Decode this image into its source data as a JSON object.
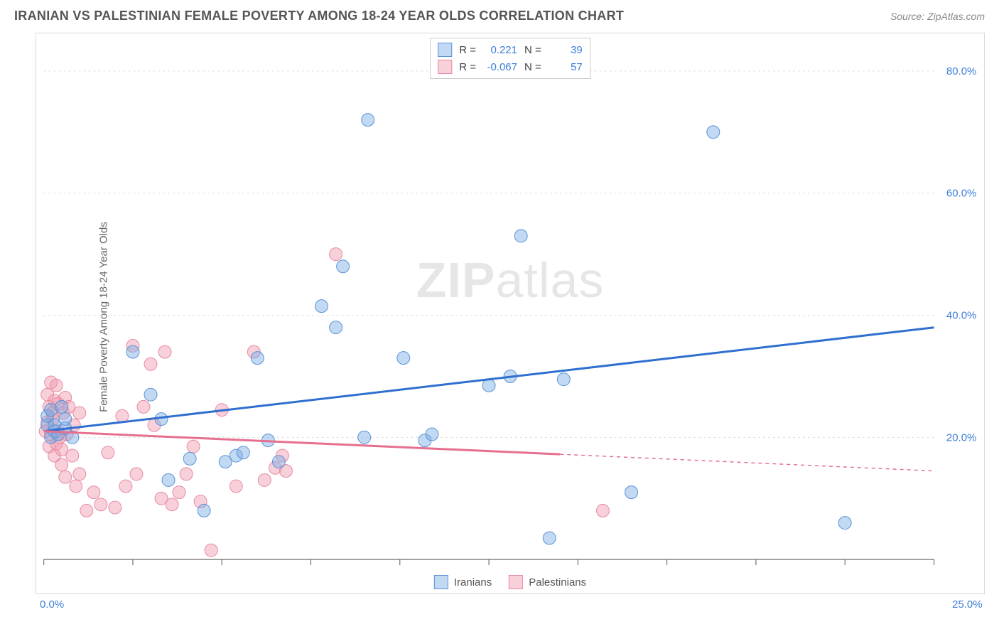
{
  "header": {
    "title": "IRANIAN VS PALESTINIAN FEMALE POVERTY AMONG 18-24 YEAR OLDS CORRELATION CHART",
    "source_prefix": "Source: ",
    "source_name": "ZipAtlas.com"
  },
  "watermark": {
    "zip": "ZIP",
    "atlas": "atlas"
  },
  "chart": {
    "type": "scatter-with-regression",
    "background_color": "#ffffff",
    "grid_color": "#dddddd",
    "grid_dash": "3,4",
    "plot_border_color": "#d9d9d9",
    "xlim": [
      0,
      25
    ],
    "ylim": [
      0,
      85
    ],
    "x_ticks": [
      0,
      2.5,
      5,
      7.5,
      10,
      12.5,
      15,
      17.5,
      20,
      22.5,
      25
    ],
    "x_tick_labels_shown": {
      "0": "0.0%",
      "25": "25.0%"
    },
    "y_gridlines": [
      20,
      40,
      60,
      80
    ],
    "y_tick_labels": {
      "20": "20.0%",
      "40": "40.0%",
      "60": "60.0%",
      "80": "80.0%"
    },
    "ylabel": "Female Poverty Among 18-24 Year Olds",
    "axis_label_color": "#3b7dd8",
    "axis_label_fontsize": 15,
    "series": {
      "iranians": {
        "label": "Iranians",
        "marker_fill": "rgba(120,170,230,0.45)",
        "marker_stroke": "#5a93d6",
        "marker_radius": 9,
        "line_color": "#2e6fd0",
        "line_width": 3,
        "stats": {
          "R": "0.221",
          "N": "39"
        },
        "regression": {
          "x1": 0,
          "y1": 21,
          "x2": 25,
          "y2": 38,
          "solid_until_x": 25
        },
        "points": [
          [
            0.1,
            22
          ],
          [
            0.1,
            23.5
          ],
          [
            0.2,
            20
          ],
          [
            0.2,
            24.5
          ],
          [
            0.3,
            22
          ],
          [
            0.3,
            21
          ],
          [
            0.4,
            20.5
          ],
          [
            0.5,
            25
          ],
          [
            0.6,
            21.5
          ],
          [
            0.6,
            23
          ],
          [
            0.8,
            20
          ],
          [
            2.5,
            34
          ],
          [
            3.0,
            27
          ],
          [
            3.3,
            23
          ],
          [
            3.5,
            13
          ],
          [
            4.1,
            16.5
          ],
          [
            4.5,
            8
          ],
          [
            5.1,
            16
          ],
          [
            5.4,
            17
          ],
          [
            5.6,
            17.5
          ],
          [
            6.0,
            33
          ],
          [
            6.3,
            19.5
          ],
          [
            6.6,
            16
          ],
          [
            7.8,
            41.5
          ],
          [
            8.2,
            38
          ],
          [
            8.4,
            48
          ],
          [
            9.0,
            20
          ],
          [
            9.1,
            72
          ],
          [
            10.1,
            33
          ],
          [
            10.7,
            19.5
          ],
          [
            10.9,
            20.5
          ],
          [
            12.5,
            28.5
          ],
          [
            13.1,
            30
          ],
          [
            13.4,
            53
          ],
          [
            14.2,
            3.5
          ],
          [
            14.6,
            29.5
          ],
          [
            16.5,
            11
          ],
          [
            18.8,
            70
          ],
          [
            22.5,
            6
          ]
        ]
      },
      "palestinians": {
        "label": "Palestinians",
        "marker_fill": "rgba(240,150,170,0.45)",
        "marker_stroke": "#e78aa2",
        "marker_radius": 9,
        "line_color": "#e66f8f",
        "line_width": 3,
        "stats": {
          "R": "-0.067",
          "N": "57"
        },
        "regression": {
          "x1": 0,
          "y1": 21,
          "x2": 25,
          "y2": 14.5,
          "solid_until_x": 14.5
        },
        "points": [
          [
            0.05,
            21
          ],
          [
            0.1,
            27
          ],
          [
            0.1,
            22.5
          ],
          [
            0.15,
            25
          ],
          [
            0.15,
            18.5
          ],
          [
            0.2,
            29
          ],
          [
            0.2,
            20.5
          ],
          [
            0.25,
            23
          ],
          [
            0.25,
            24
          ],
          [
            0.3,
            17
          ],
          [
            0.3,
            26
          ],
          [
            0.35,
            28.5
          ],
          [
            0.35,
            19
          ],
          [
            0.4,
            21
          ],
          [
            0.4,
            25.5
          ],
          [
            0.45,
            20
          ],
          [
            0.5,
            18
          ],
          [
            0.5,
            15.5
          ],
          [
            0.55,
            24
          ],
          [
            0.6,
            13.5
          ],
          [
            0.6,
            26.5
          ],
          [
            0.65,
            20.5
          ],
          [
            0.7,
            25
          ],
          [
            0.8,
            17
          ],
          [
            0.85,
            22
          ],
          [
            0.9,
            12
          ],
          [
            1.0,
            24
          ],
          [
            1.0,
            14
          ],
          [
            1.2,
            8
          ],
          [
            1.4,
            11
          ],
          [
            1.6,
            9
          ],
          [
            1.8,
            17.5
          ],
          [
            2.0,
            8.5
          ],
          [
            2.2,
            23.5
          ],
          [
            2.3,
            12
          ],
          [
            2.5,
            35
          ],
          [
            2.6,
            14
          ],
          [
            2.8,
            25
          ],
          [
            3.0,
            32
          ],
          [
            3.1,
            22
          ],
          [
            3.3,
            10
          ],
          [
            3.4,
            34
          ],
          [
            3.6,
            9
          ],
          [
            3.8,
            11
          ],
          [
            4.0,
            14
          ],
          [
            4.2,
            18.5
          ],
          [
            4.4,
            9.5
          ],
          [
            4.7,
            1.5
          ],
          [
            5.0,
            24.5
          ],
          [
            5.4,
            12
          ],
          [
            5.9,
            34
          ],
          [
            6.2,
            13
          ],
          [
            6.5,
            15
          ],
          [
            6.7,
            17
          ],
          [
            6.8,
            14.5
          ],
          [
            8.2,
            50
          ],
          [
            15.7,
            8
          ]
        ]
      }
    },
    "legend_top": {
      "r_label": "R =",
      "n_label": "N ="
    }
  }
}
